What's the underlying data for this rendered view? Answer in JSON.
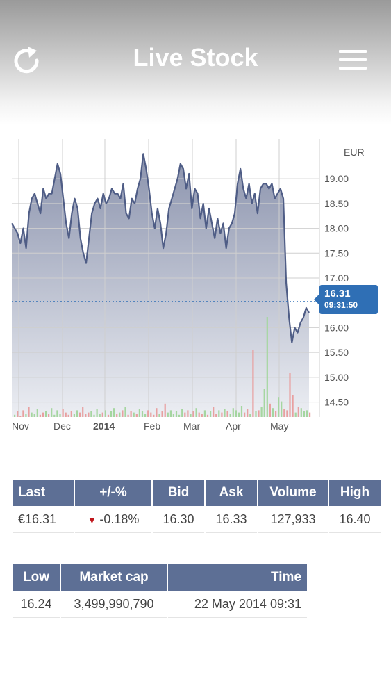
{
  "header": {
    "title": "Live Stock",
    "refresh_icon": "refresh-icon",
    "menu_icon": "hamburger-menu-icon"
  },
  "chart_data": {
    "type": "line",
    "currency": "EUR",
    "x_ticks": [
      "Nov",
      "Dec",
      "2014",
      "Feb",
      "Mar",
      "Apr",
      "May"
    ],
    "y_ticks": [
      "19.00",
      "18.50",
      "18.00",
      "17.50",
      "17.00",
      "16.00",
      "15.50",
      "15.00",
      "14.50"
    ],
    "ylim": [
      14.2,
      19.8
    ],
    "current": {
      "price": "16.31",
      "time": "09:31:50"
    },
    "price_series": [
      18.1,
      18.0,
      17.9,
      17.7,
      18.0,
      17.6,
      18.3,
      18.6,
      18.7,
      18.5,
      18.3,
      18.8,
      18.6,
      18.7,
      18.7,
      19.0,
      19.3,
      19.1,
      18.6,
      18.1,
      17.8,
      18.3,
      18.6,
      18.4,
      17.8,
      17.5,
      17.3,
      17.8,
      18.3,
      18.5,
      18.6,
      18.4,
      18.7,
      18.5,
      18.6,
      18.8,
      18.7,
      18.7,
      18.6,
      18.9,
      18.3,
      18.2,
      18.6,
      18.5,
      18.8,
      19.0,
      19.5,
      19.2,
      18.8,
      18.3,
      18.0,
      18.4,
      18.1,
      17.6,
      17.9,
      18.4,
      18.6,
      18.8,
      19.0,
      19.3,
      19.2,
      18.8,
      19.1,
      18.4,
      18.8,
      18.7,
      18.2,
      18.5,
      18.0,
      18.4,
      18.1,
      17.8,
      18.2,
      17.9,
      18.1,
      17.6,
      18.0,
      18.1,
      18.3,
      18.9,
      19.2,
      18.8,
      18.6,
      18.9,
      18.5,
      18.7,
      18.3,
      18.8,
      18.9,
      18.9,
      18.8,
      18.9,
      18.6,
      18.7,
      18.8,
      18.6,
      16.9,
      16.2,
      15.7,
      16.0,
      15.9,
      16.1,
      16.2,
      16.4,
      16.3
    ],
    "volume_series": [
      2,
      5,
      1,
      6,
      3,
      9,
      4,
      3,
      7,
      2,
      4,
      5,
      3,
      8,
      2,
      6,
      3,
      7,
      4,
      2,
      5,
      3,
      6,
      4,
      9,
      3,
      4,
      5,
      2,
      7,
      3,
      4,
      6,
      2,
      5,
      8,
      3,
      4,
      6,
      9,
      2,
      5,
      4,
      3,
      7,
      5,
      3,
      6,
      4,
      2,
      8,
      3,
      5,
      12,
      4,
      6,
      3,
      5,
      2,
      7,
      4,
      6,
      3,
      5,
      8,
      4,
      3,
      6,
      2,
      5,
      9,
      3,
      6,
      4,
      7,
      5,
      3,
      8,
      6,
      4,
      10,
      4,
      7,
      3,
      60,
      5,
      6,
      9,
      25,
      90,
      12,
      8,
      5,
      18,
      14,
      7,
      6,
      40,
      20,
      4,
      9,
      8,
      5,
      6,
      4
    ]
  },
  "quote_table": {
    "headers": [
      "Last",
      "+/-%",
      "Bid",
      "Ask",
      "Volume",
      "High"
    ],
    "values": [
      "€16.31",
      "-0.18%",
      "16.30",
      "16.33",
      "127,933",
      "16.40"
    ],
    "change_direction_icon": "down-arrow-icon"
  },
  "info_table": {
    "headers": [
      "Low",
      "Market cap",
      "Time"
    ],
    "values": [
      "16.24",
      "3,499,990,790",
      "22 May 2014 09:31"
    ]
  }
}
